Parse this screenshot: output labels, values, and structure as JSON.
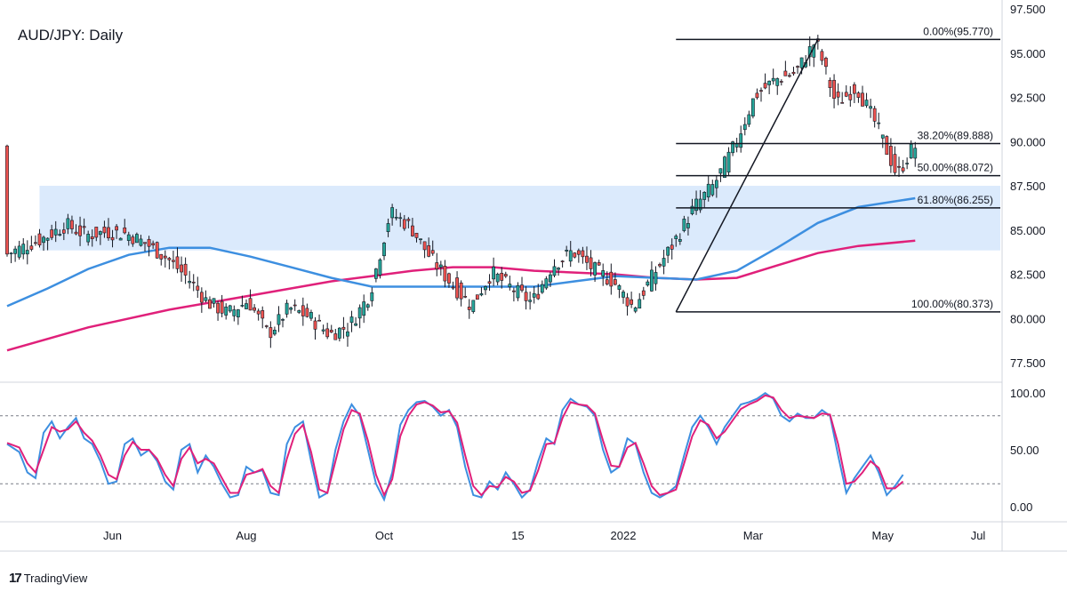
{
  "title": "AUD/JPY: Daily",
  "brand": {
    "logo": "17",
    "name": "TradingView"
  },
  "chart_data": [
    {
      "type": "candlestick",
      "title": "AUD/JPY: Daily",
      "ylim": [
        76.5,
        97.5
      ],
      "yticks": [
        "97.500",
        "95.000",
        "92.500",
        "90.000",
        "87.500",
        "85.000",
        "82.500",
        "80.000",
        "77.500"
      ],
      "ytick_values": [
        97.5,
        95,
        92.5,
        90,
        87.5,
        85,
        82.5,
        80,
        77.5
      ],
      "xticks": [
        "Jun",
        "Aug",
        "Oct",
        "15",
        "2022",
        "Mar",
        "May",
        "Jul"
      ],
      "colors": {
        "up": "#26a69a",
        "down": "#ef5350",
        "ma_fast": "#3d8fe0",
        "ma_slow": "#e0207a",
        "zone": "#dbeafc",
        "fib": "#131722"
      },
      "price_path": [
        [
          0,
          83.6
        ],
        [
          5,
          84.1
        ],
        [
          10,
          84.6
        ],
        [
          15,
          85.3
        ],
        [
          20,
          84.7
        ],
        [
          25,
          84.9
        ],
        [
          30,
          84.8
        ],
        [
          35,
          84.2
        ],
        [
          40,
          83.4
        ],
        [
          45,
          82.3
        ],
        [
          50,
          80.9
        ],
        [
          55,
          80.3
        ],
        [
          60,
          81.0
        ],
        [
          65,
          79.1
        ],
        [
          70,
          80.6
        ],
        [
          75,
          80.1
        ],
        [
          80,
          79.1
        ],
        [
          85,
          79.6
        ],
        [
          90,
          81.4
        ],
        [
          95,
          86.0
        ],
        [
          100,
          85.2
        ],
        [
          105,
          83.4
        ],
        [
          110,
          82.0
        ],
        [
          115,
          80.7
        ],
        [
          120,
          82.6
        ],
        [
          125,
          81.7
        ],
        [
          130,
          80.9
        ],
        [
          135,
          83.0
        ],
        [
          140,
          83.8
        ],
        [
          145,
          82.8
        ],
        [
          150,
          82.1
        ],
        [
          155,
          80.6
        ],
        [
          160,
          82.5
        ],
        [
          165,
          84.3
        ],
        [
          170,
          86.3
        ],
        [
          175,
          87.6
        ],
        [
          180,
          89.8
        ],
        [
          185,
          92.6
        ],
        [
          190,
          93.5
        ],
        [
          195,
          93.9
        ],
        [
          200,
          95.7
        ],
        [
          205,
          92.1
        ],
        [
          210,
          93.1
        ],
        [
          215,
          90.9
        ],
        [
          220,
          88.1
        ],
        [
          224,
          89.7
        ]
      ],
      "ma_fast": [
        [
          0,
          80.7
        ],
        [
          10,
          81.7
        ],
        [
          20,
          82.8
        ],
        [
          30,
          83.6
        ],
        [
          40,
          84.0
        ],
        [
          50,
          84.0
        ],
        [
          60,
          83.5
        ],
        [
          70,
          82.9
        ],
        [
          80,
          82.3
        ],
        [
          90,
          81.8
        ],
        [
          100,
          81.8
        ],
        [
          110,
          81.8
        ],
        [
          120,
          81.8
        ],
        [
          130,
          81.8
        ],
        [
          140,
          82.1
        ],
        [
          150,
          82.4
        ],
        [
          160,
          82.3
        ],
        [
          170,
          82.2
        ],
        [
          180,
          82.7
        ],
        [
          190,
          84.0
        ],
        [
          200,
          85.4
        ],
        [
          210,
          86.3
        ],
        [
          224,
          86.8
        ]
      ],
      "ma_slow": [
        [
          0,
          78.2
        ],
        [
          20,
          79.5
        ],
        [
          40,
          80.5
        ],
        [
          60,
          81.3
        ],
        [
          80,
          82.1
        ],
        [
          90,
          82.4
        ],
        [
          100,
          82.7
        ],
        [
          110,
          82.9
        ],
        [
          120,
          82.9
        ],
        [
          130,
          82.7
        ],
        [
          140,
          82.6
        ],
        [
          150,
          82.5
        ],
        [
          160,
          82.3
        ],
        [
          170,
          82.2
        ],
        [
          180,
          82.3
        ],
        [
          190,
          83.0
        ],
        [
          200,
          83.7
        ],
        [
          210,
          84.1
        ],
        [
          224,
          84.4
        ]
      ],
      "zone": {
        "low": 83.85,
        "high": 87.5,
        "from": 8,
        "to": 245
      },
      "fib_lines": [
        {
          "label": "0.00%(95.770)",
          "value": 95.77
        },
        {
          "label": "38.20%(89.888)",
          "value": 89.888
        },
        {
          "label": "50.00%(88.072)",
          "value": 88.072
        },
        {
          "label": "61.80%(86.255)",
          "value": 86.255
        },
        {
          "label": "100.00%(80.373)",
          "value": 80.373
        }
      ],
      "fib_start": 165,
      "trendline": {
        "from": [
          165,
          80.373
        ],
        "to": [
          200,
          95.77
        ]
      }
    },
    {
      "type": "line",
      "name": "stochastic",
      "ylim": [
        -8,
        108
      ],
      "yticks": [
        "100.00",
        "50.00",
        "0.00"
      ],
      "ytick_values": [
        100,
        50,
        0
      ],
      "levels": [
        80,
        20
      ],
      "series_k": [
        [
          0,
          55
        ],
        [
          3,
          48
        ],
        [
          5,
          30
        ],
        [
          7,
          25
        ],
        [
          9,
          65
        ],
        [
          11,
          75
        ],
        [
          13,
          60
        ],
        [
          15,
          70
        ],
        [
          17,
          78
        ],
        [
          19,
          60
        ],
        [
          21,
          55
        ],
        [
          23,
          40
        ],
        [
          25,
          20
        ],
        [
          27,
          22
        ],
        [
          29,
          55
        ],
        [
          31,
          60
        ],
        [
          33,
          45
        ],
        [
          35,
          50
        ],
        [
          37,
          40
        ],
        [
          39,
          22
        ],
        [
          41,
          15
        ],
        [
          43,
          50
        ],
        [
          45,
          55
        ],
        [
          47,
          30
        ],
        [
          49,
          45
        ],
        [
          51,
          35
        ],
        [
          53,
          20
        ],
        [
          55,
          8
        ],
        [
          57,
          10
        ],
        [
          59,
          35
        ],
        [
          61,
          30
        ],
        [
          63,
          32
        ],
        [
          65,
          12
        ],
        [
          67,
          10
        ],
        [
          69,
          55
        ],
        [
          71,
          70
        ],
        [
          73,
          75
        ],
        [
          75,
          40
        ],
        [
          77,
          8
        ],
        [
          79,
          12
        ],
        [
          81,
          50
        ],
        [
          83,
          75
        ],
        [
          85,
          90
        ],
        [
          87,
          80
        ],
        [
          89,
          50
        ],
        [
          91,
          20
        ],
        [
          93,
          6
        ],
        [
          95,
          30
        ],
        [
          97,
          72
        ],
        [
          99,
          85
        ],
        [
          101,
          92
        ],
        [
          103,
          93
        ],
        [
          105,
          88
        ],
        [
          107,
          80
        ],
        [
          109,
          85
        ],
        [
          111,
          70
        ],
        [
          113,
          35
        ],
        [
          115,
          10
        ],
        [
          117,
          8
        ],
        [
          119,
          22
        ],
        [
          121,
          15
        ],
        [
          123,
          30
        ],
        [
          125,
          20
        ],
        [
          127,
          8
        ],
        [
          129,
          15
        ],
        [
          131,
          40
        ],
        [
          133,
          60
        ],
        [
          135,
          55
        ],
        [
          137,
          85
        ],
        [
          139,
          95
        ],
        [
          141,
          90
        ],
        [
          143,
          88
        ],
        [
          145,
          80
        ],
        [
          147,
          50
        ],
        [
          149,
          30
        ],
        [
          151,
          35
        ],
        [
          153,
          60
        ],
        [
          155,
          55
        ],
        [
          157,
          30
        ],
        [
          159,
          12
        ],
        [
          161,
          8
        ],
        [
          163,
          12
        ],
        [
          165,
          18
        ],
        [
          167,
          45
        ],
        [
          169,
          70
        ],
        [
          171,
          80
        ],
        [
          173,
          70
        ],
        [
          175,
          55
        ],
        [
          177,
          70
        ],
        [
          179,
          80
        ],
        [
          181,
          90
        ],
        [
          183,
          92
        ],
        [
          185,
          95
        ],
        [
          187,
          100
        ],
        [
          189,
          95
        ],
        [
          191,
          80
        ],
        [
          193,
          75
        ],
        [
          195,
          82
        ],
        [
          197,
          78
        ],
        [
          199,
          78
        ],
        [
          201,
          85
        ],
        [
          203,
          80
        ],
        [
          205,
          45
        ],
        [
          207,
          12
        ],
        [
          209,
          25
        ],
        [
          211,
          35
        ],
        [
          213,
          45
        ],
        [
          215,
          30
        ],
        [
          217,
          10
        ],
        [
          219,
          18
        ],
        [
          221,
          28
        ]
      ],
      "series_d": [
        [
          0,
          56
        ],
        [
          3,
          52
        ],
        [
          5,
          38
        ],
        [
          7,
          30
        ],
        [
          9,
          50
        ],
        [
          11,
          70
        ],
        [
          13,
          66
        ],
        [
          15,
          68
        ],
        [
          17,
          75
        ],
        [
          19,
          65
        ],
        [
          21,
          58
        ],
        [
          23,
          45
        ],
        [
          25,
          28
        ],
        [
          27,
          24
        ],
        [
          29,
          45
        ],
        [
          31,
          57
        ],
        [
          33,
          50
        ],
        [
          35,
          50
        ],
        [
          37,
          42
        ],
        [
          39,
          28
        ],
        [
          41,
          18
        ],
        [
          43,
          42
        ],
        [
          45,
          52
        ],
        [
          47,
          38
        ],
        [
          49,
          42
        ],
        [
          51,
          38
        ],
        [
          53,
          25
        ],
        [
          55,
          12
        ],
        [
          57,
          12
        ],
        [
          59,
          28
        ],
        [
          61,
          30
        ],
        [
          63,
          33
        ],
        [
          65,
          18
        ],
        [
          67,
          12
        ],
        [
          69,
          42
        ],
        [
          71,
          64
        ],
        [
          73,
          72
        ],
        [
          75,
          48
        ],
        [
          77,
          15
        ],
        [
          79,
          12
        ],
        [
          81,
          40
        ],
        [
          83,
          68
        ],
        [
          85,
          85
        ],
        [
          87,
          82
        ],
        [
          89,
          58
        ],
        [
          91,
          28
        ],
        [
          93,
          10
        ],
        [
          95,
          24
        ],
        [
          97,
          62
        ],
        [
          99,
          80
        ],
        [
          101,
          90
        ],
        [
          103,
          92
        ],
        [
          105,
          89
        ],
        [
          107,
          83
        ],
        [
          109,
          84
        ],
        [
          111,
          74
        ],
        [
          113,
          45
        ],
        [
          115,
          18
        ],
        [
          117,
          10
        ],
        [
          119,
          18
        ],
        [
          121,
          17
        ],
        [
          123,
          26
        ],
        [
          125,
          22
        ],
        [
          127,
          12
        ],
        [
          129,
          14
        ],
        [
          131,
          32
        ],
        [
          133,
          55
        ],
        [
          135,
          56
        ],
        [
          137,
          78
        ],
        [
          139,
          92
        ],
        [
          141,
          90
        ],
        [
          143,
          89
        ],
        [
          145,
          82
        ],
        [
          147,
          58
        ],
        [
          149,
          36
        ],
        [
          151,
          35
        ],
        [
          153,
          52
        ],
        [
          155,
          56
        ],
        [
          157,
          38
        ],
        [
          159,
          18
        ],
        [
          161,
          10
        ],
        [
          163,
          12
        ],
        [
          165,
          15
        ],
        [
          167,
          38
        ],
        [
          169,
          62
        ],
        [
          171,
          76
        ],
        [
          173,
          72
        ],
        [
          175,
          60
        ],
        [
          177,
          66
        ],
        [
          179,
          76
        ],
        [
          181,
          86
        ],
        [
          183,
          90
        ],
        [
          185,
          93
        ],
        [
          187,
          98
        ],
        [
          189,
          96
        ],
        [
          191,
          85
        ],
        [
          193,
          78
        ],
        [
          195,
          80
        ],
        [
          197,
          79
        ],
        [
          199,
          78
        ],
        [
          201,
          82
        ],
        [
          203,
          81
        ],
        [
          205,
          55
        ],
        [
          207,
          20
        ],
        [
          209,
          22
        ],
        [
          211,
          30
        ],
        [
          213,
          40
        ],
        [
          215,
          34
        ],
        [
          217,
          16
        ],
        [
          219,
          16
        ],
        [
          221,
          22
        ]
      ]
    }
  ]
}
